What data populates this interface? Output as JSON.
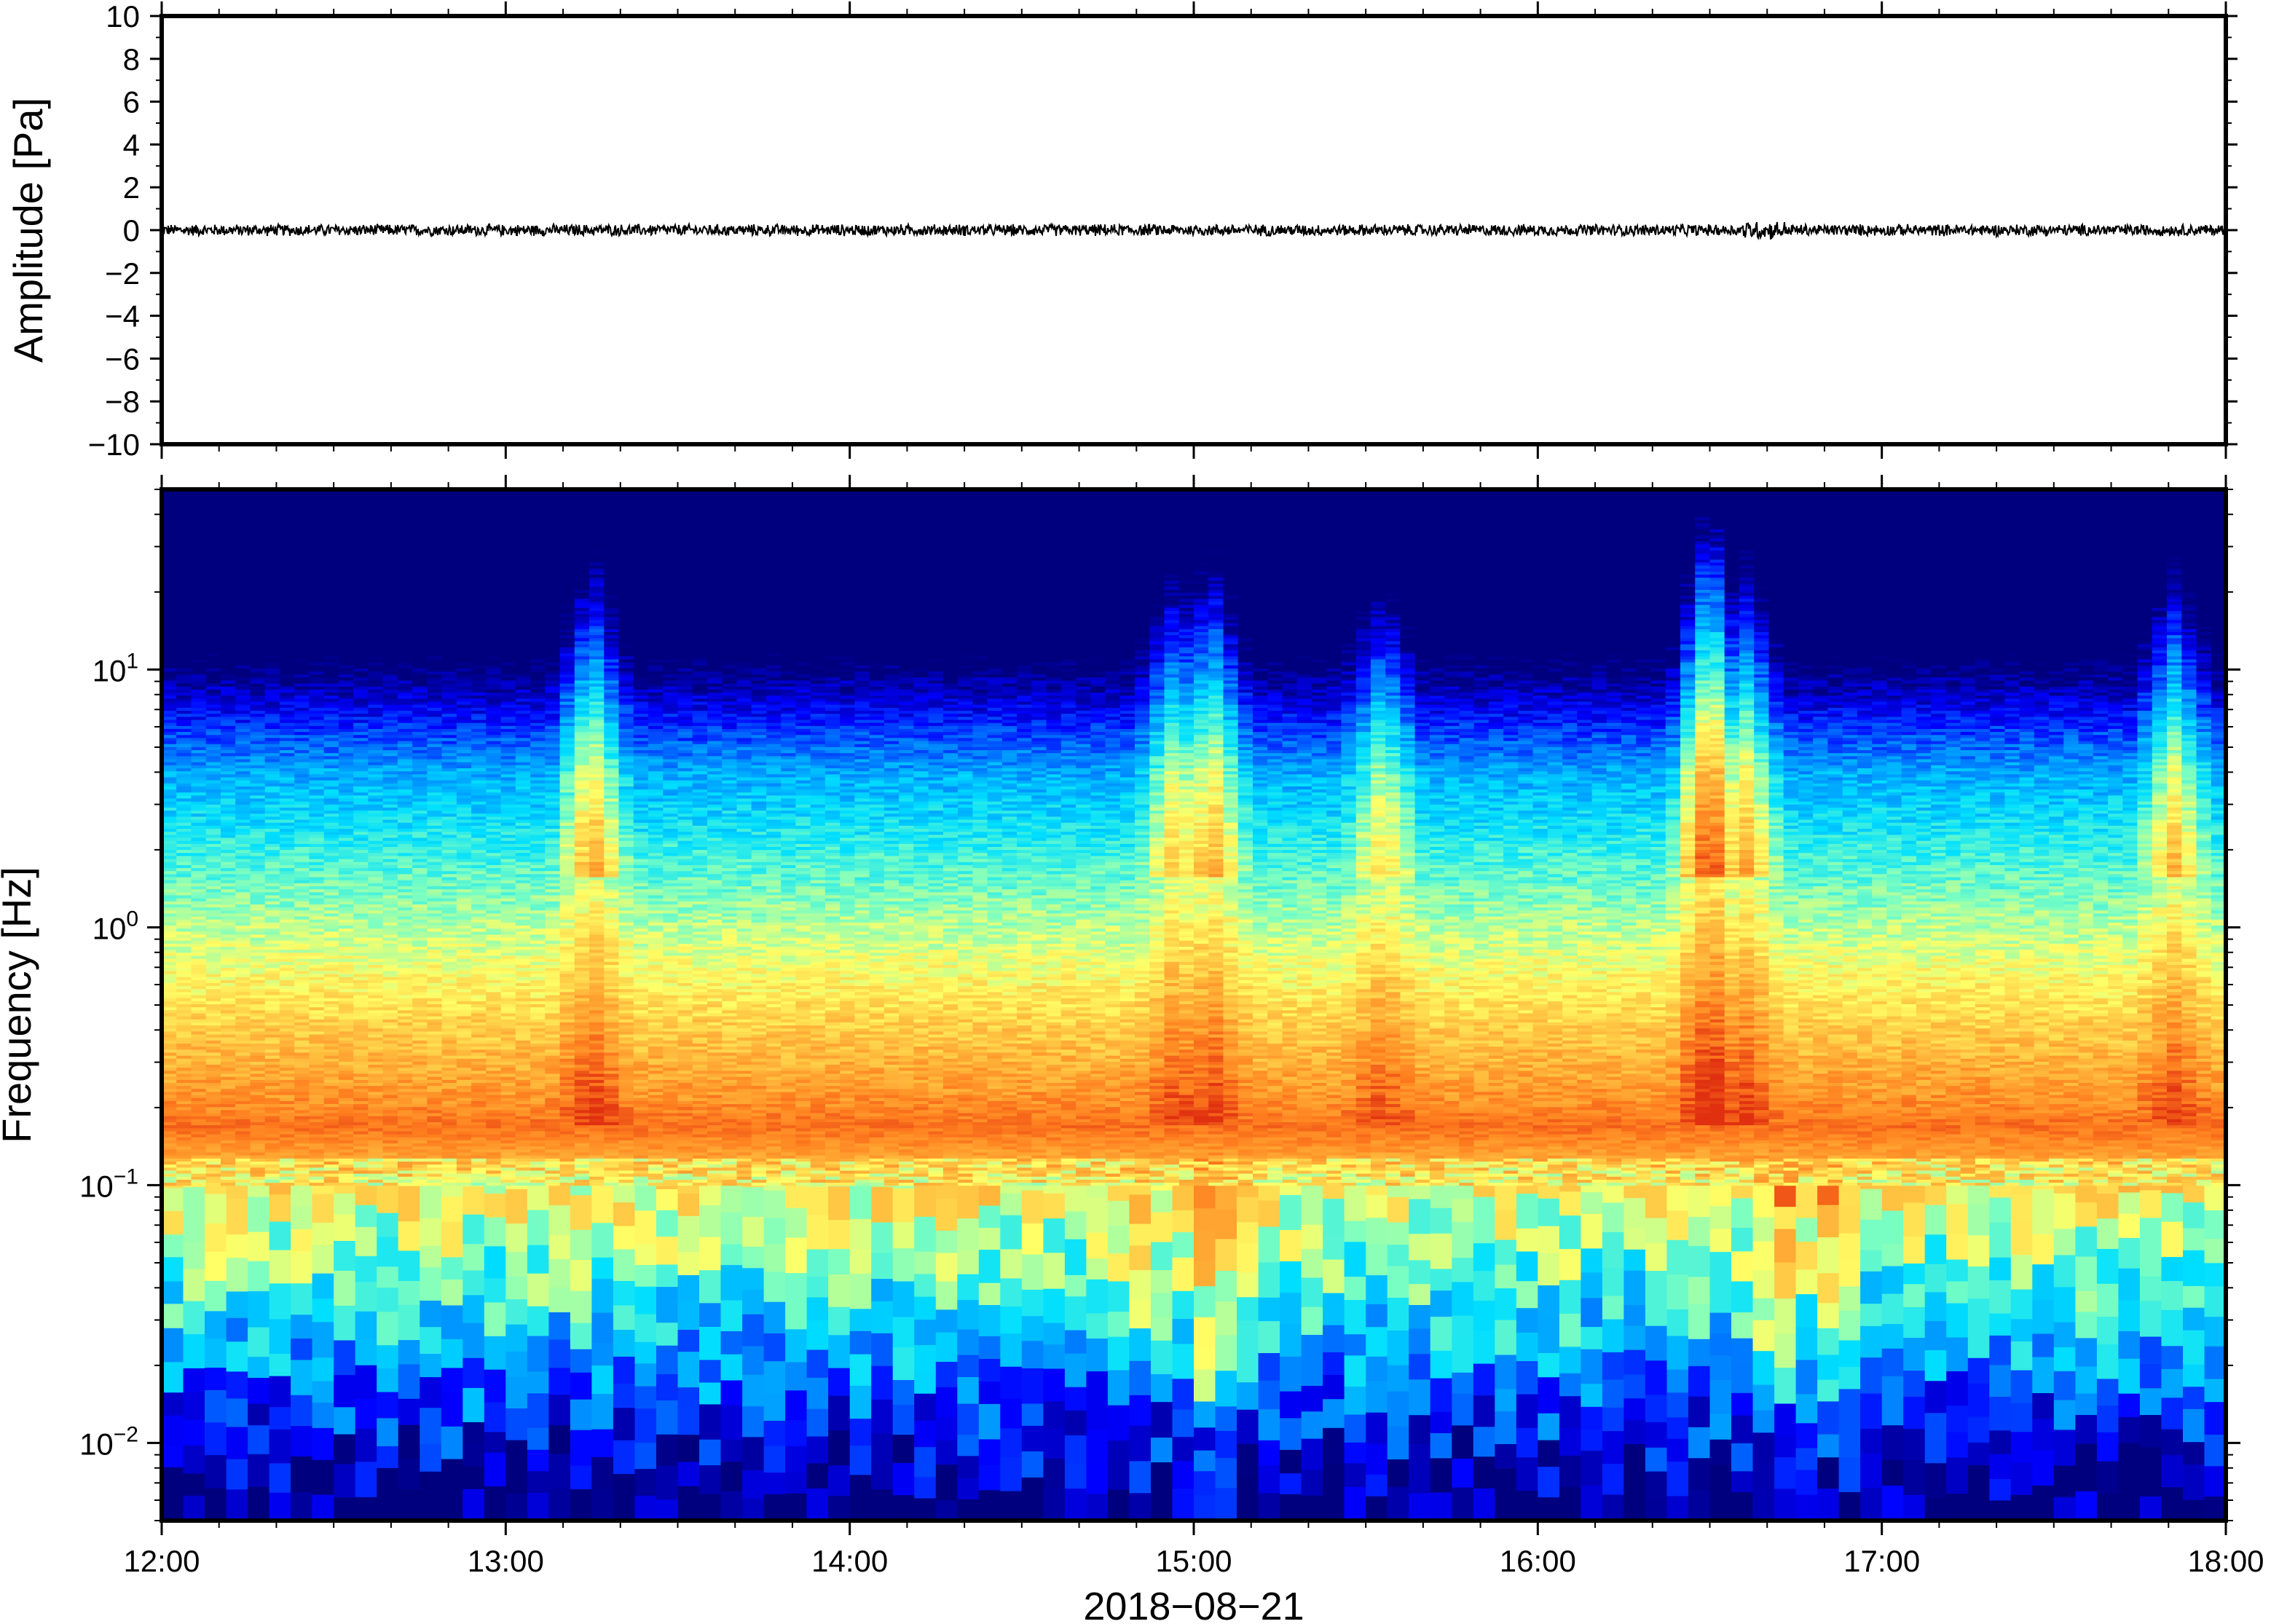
{
  "chart_data": [
    {
      "type": "line",
      "ylabel": "Amplitude [Pa]",
      "ylim": [
        -10,
        10
      ],
      "yticks": [
        "10",
        "8",
        "6",
        "4",
        "2",
        "0",
        "−2",
        "−4",
        "−6",
        "−8",
        "−10"
      ],
      "xlim": [
        "12:00",
        "18:00"
      ],
      "series": [
        {
          "description_values": "noise trace centred on 0 Pa, peak amplitude about 0.3 Pa",
          "mean": 0,
          "peak": 0.3
        }
      ],
      "grid": false
    },
    {
      "type": "heatmap",
      "ylabel": "Frequency [Hz]",
      "yscale": "log",
      "ylim": [
        0.005,
        50
      ],
      "ytick_values": [
        10,
        1,
        0.1,
        0.01
      ],
      "ytick_bases": [
        "10",
        "10",
        "10",
        "10"
      ],
      "ytick_exponents": [
        "1",
        "0",
        "−1",
        "−2"
      ],
      "xlabel": "2018−08−21",
      "xticks": [
        "12:00",
        "13:00",
        "14:00",
        "15:00",
        "16:00",
        "17:00",
        "18:00"
      ],
      "xlim": [
        "12:00",
        "18:00"
      ],
      "microseism_peak_hz": 0.17,
      "colormap": [
        "#00007f",
        "#0000ff",
        "#007fff",
        "#00dfff",
        "#7fffbf",
        "#ffff66",
        "#ffbf3f",
        "#ff7f1f",
        "#e03010"
      ],
      "grid": false
    }
  ]
}
